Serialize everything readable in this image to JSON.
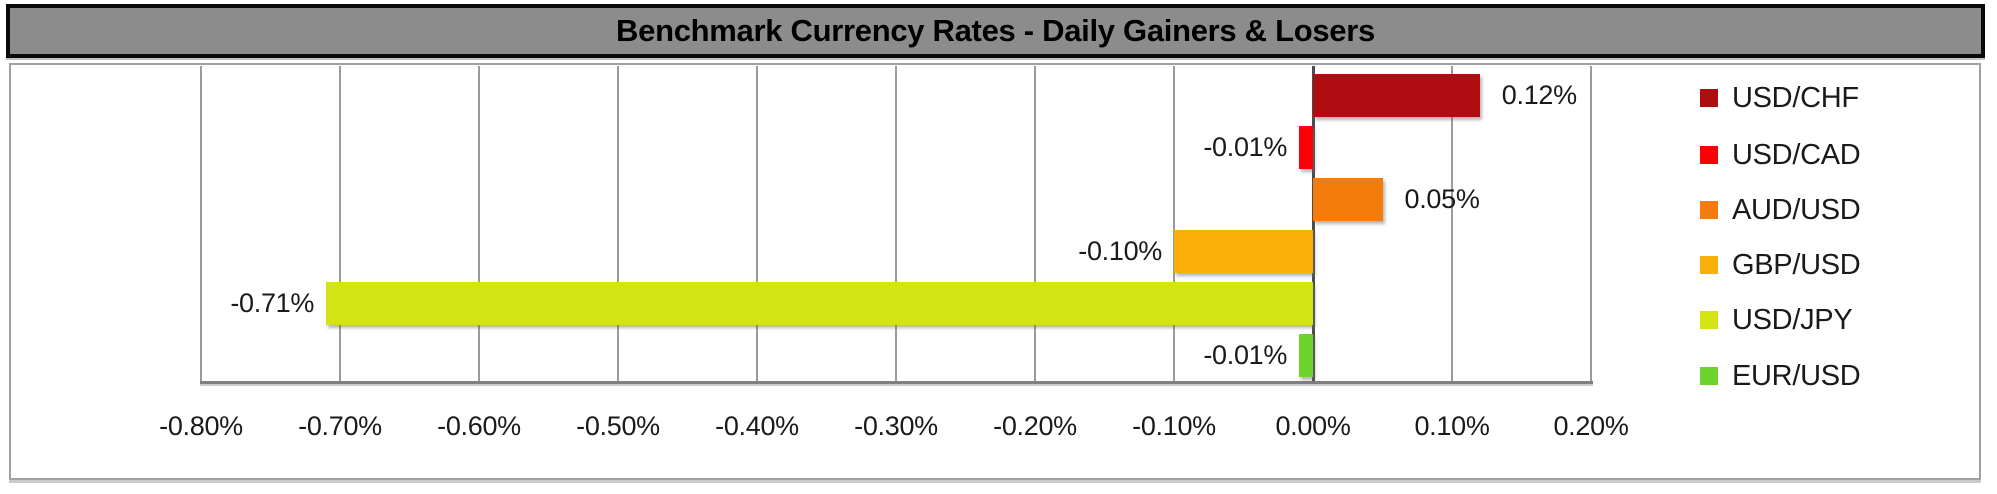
{
  "title": {
    "text": "Benchmark Currency Rates - Daily Gainers & Losers"
  },
  "colors": {
    "banner_fill": "#8c8c8c",
    "banner_border": "#0a0a0a",
    "chart_border": "#a0a0a0",
    "gridline": "#9b9b9b",
    "zero_axis": "#4d4d4d",
    "label_text": "#1a1a1a"
  },
  "chart_data": {
    "type": "bar",
    "orientation": "horizontal",
    "title": "Benchmark Currency Rates - Daily Gainers & Losers",
    "categories": [
      "USD/CHF",
      "USD/CAD",
      "AUD/USD",
      "GBP/USD",
      "USD/JPY",
      "EUR/USD"
    ],
    "values": [
      0.12,
      -0.01,
      0.05,
      -0.1,
      -0.71,
      -0.01
    ],
    "value_labels": [
      "0.12%",
      "-0.01%",
      "0.05%",
      "-0.10%",
      "-0.71%",
      "-0.01%"
    ],
    "series_colors": [
      "#b00d12",
      "#fb0007",
      "#f57b0d",
      "#faaf08",
      "#d2e412",
      "#6ed42d"
    ],
    "xlabel": "",
    "ylabel": "",
    "xlim": [
      -0.8,
      0.2
    ],
    "x_tick_labels": [
      "-0.80%",
      "-0.70%",
      "-0.60%",
      "-0.50%",
      "-0.40%",
      "-0.30%",
      "-0.20%",
      "-0.10%",
      "0.00%",
      "0.10%",
      "0.20%"
    ],
    "x_tick_values": [
      -0.8,
      -0.7,
      -0.6,
      -0.5,
      -0.4,
      -0.3,
      -0.2,
      -0.1,
      0.0,
      0.1,
      0.2
    ],
    "grid": true,
    "legend_position": "right",
    "legend": [
      "USD/CHF",
      "USD/CAD",
      "AUD/USD",
      "GBP/USD",
      "USD/JPY",
      "EUR/USD"
    ]
  }
}
